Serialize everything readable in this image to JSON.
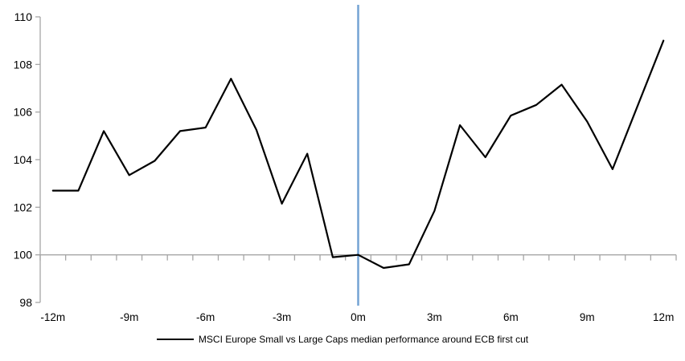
{
  "chart_data": {
    "type": "line",
    "title": "",
    "xlabel": "",
    "ylabel": "",
    "x_unit": "months relative to ECB first cut",
    "x": [
      -12,
      -11,
      -10,
      -9,
      -8,
      -7,
      -6,
      -5,
      -4,
      -3,
      -2,
      -1,
      0,
      1,
      2,
      3,
      4,
      5,
      6,
      7,
      8,
      9,
      10,
      11,
      12
    ],
    "series": [
      {
        "name": "MSCI Europe Small vs Large Caps median performance around ECB first cut",
        "color": "#000000",
        "values": [
          102.7,
          102.7,
          105.2,
          103.35,
          103.95,
          105.2,
          105.35,
          107.4,
          105.25,
          102.15,
          104.25,
          99.9,
          100.0,
          99.45,
          99.6,
          101.85,
          105.45,
          104.1,
          105.85,
          106.3,
          107.15,
          105.6,
          103.6,
          106.3,
          109.0
        ]
      }
    ],
    "ylim": [
      98,
      110
    ],
    "y_ticks": [
      98,
      100,
      102,
      104,
      106,
      108,
      110
    ],
    "x_tick_labels": [
      "-12m",
      "-9m",
      "-6m",
      "-3m",
      "0m",
      "3m",
      "6m",
      "9m",
      "12m"
    ],
    "x_tick_positions": [
      -12,
      -9,
      -6,
      -3,
      0,
      3,
      6,
      9,
      12
    ],
    "x_axis_cross_value": 100,
    "event_line_x": 0,
    "grid": false,
    "legend_position": "bottom",
    "colors": {
      "line": "#000000",
      "event_line": "#74A3D4",
      "axis": "#A6A6A6",
      "background": "#ffffff",
      "text": "#000000"
    }
  }
}
